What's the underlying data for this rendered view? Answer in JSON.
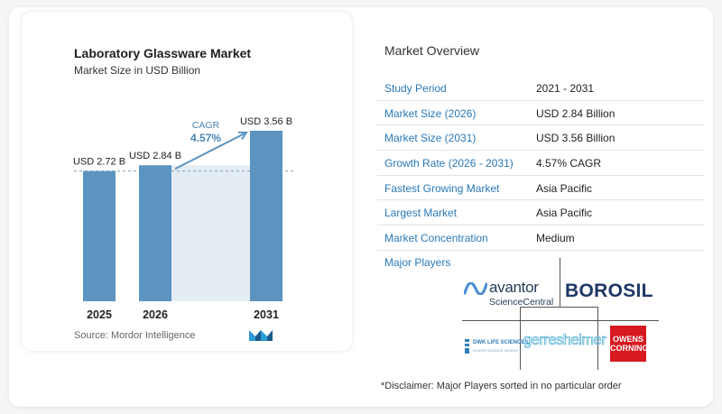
{
  "chart_data": {
    "type": "bar",
    "title": "Laboratory Glassware Market",
    "subtitle": "Market Size in USD Billion",
    "categories": [
      "2025",
      "2026",
      "2031"
    ],
    "values": [
      2.72,
      2.84,
      3.56
    ],
    "data_labels": [
      "USD 2.72 B",
      "USD 2.84 B",
      "USD 3.56 B"
    ],
    "annotation": {
      "label": "CAGR",
      "value": "4.57%"
    },
    "ylim": [
      0,
      3.56
    ],
    "grid": false,
    "bar_color": "#5b94c0",
    "shade_color": "#e4edf4",
    "accent_color": "#5b94c0"
  },
  "source": "Source:  Mordor Intelligence",
  "overview": {
    "title": "Market Overview",
    "rows": [
      {
        "label": "Study Period",
        "value": "2021 - 2031"
      },
      {
        "label": "Market Size (2026)",
        "value": "USD 2.84 Billion"
      },
      {
        "label": "Market Size (2031)",
        "value": "USD 3.56 Billion"
      },
      {
        "label": "Growth Rate (2026 - 2031)",
        "value": "4.57% CAGR"
      },
      {
        "label": "Fastest Growing Market",
        "value": "Asia Pacific"
      },
      {
        "label": "Largest Market",
        "value": "Asia Pacific"
      },
      {
        "label": "Market Concentration",
        "value": "Medium"
      }
    ]
  },
  "players": {
    "title": "Major Players",
    "avantor": {
      "name": "avantor",
      "sub": "ScienceCentral"
    },
    "borosil": "BOROSIL",
    "dwk": {
      "name": "DWK LIFE SCIENCES",
      "sub": "WHERE SCIENCE WORKS"
    },
    "gerresheimer": "gerresheimer",
    "owens": [
      "OWENS",
      "CORNING"
    ]
  },
  "disclaimer": "*Disclaimer: Major Players sorted in no particular order",
  "colors": {
    "label_blue": "#2a79b8",
    "row_border": "#e1e4e8"
  }
}
